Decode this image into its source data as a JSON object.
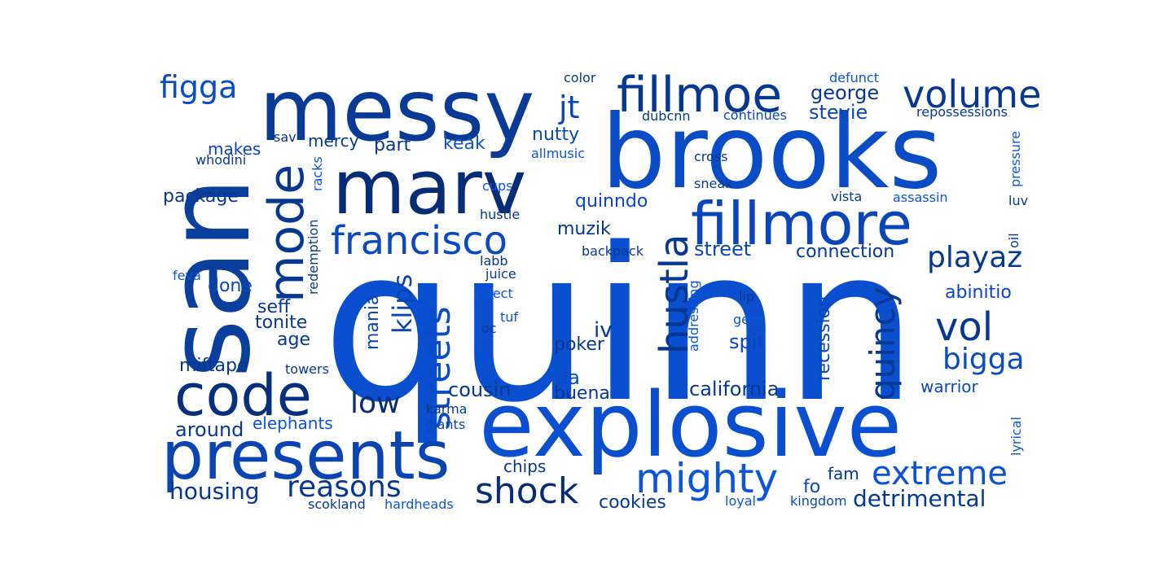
{
  "words": [
    {
      "text": "quinn",
      "color": "#0a4fd0"
    },
    {
      "text": "brooks",
      "color": "#0a4bc6"
    },
    {
      "text": "san",
      "color": "#0a3f9e"
    },
    {
      "text": "messy",
      "color": "#083a96"
    },
    {
      "text": "explosive",
      "color": "#0a4fd0"
    },
    {
      "text": "marv",
      "color": "#062c76"
    },
    {
      "text": "presents",
      "color": "#0a43b2"
    },
    {
      "text": "fillmore",
      "color": "#0a46ba"
    },
    {
      "text": "code",
      "color": "#06307e"
    },
    {
      "text": "mode",
      "color": "#073891"
    },
    {
      "text": "fillmoe",
      "color": "#073891"
    },
    {
      "text": "francisco",
      "color": "#0a49c0"
    },
    {
      "text": "mighty",
      "color": "#0b55dc"
    },
    {
      "text": "hustla",
      "color": "#073891"
    },
    {
      "text": "volume",
      "color": "#073891"
    },
    {
      "text": "streets",
      "color": "#0a4bc6"
    },
    {
      "text": "shock",
      "color": "#062c76"
    },
    {
      "text": "extreme",
      "color": "#0b52d6"
    },
    {
      "text": "vol",
      "color": "#073891"
    },
    {
      "text": "quincy",
      "color": "#073891"
    },
    {
      "text": "bigga",
      "color": "#0a4bc6"
    },
    {
      "text": "playaz",
      "color": "#073891"
    },
    {
      "text": "reasons",
      "color": "#073891"
    },
    {
      "text": "low",
      "color": "#062c76"
    },
    {
      "text": "klips",
      "color": "#0a43b2"
    },
    {
      "text": "figga",
      "color": "#0a4bc6"
    },
    {
      "text": "jt",
      "color": "#0a46ba"
    },
    {
      "text": "housing",
      "color": "#073891"
    },
    {
      "text": "detrimental",
      "color": "#073891"
    },
    {
      "text": "george",
      "color": "#073891"
    },
    {
      "text": "stevie",
      "color": "#0a46ba"
    },
    {
      "text": "nutty",
      "color": "#0a46ba"
    },
    {
      "text": "keak",
      "color": "#0b55dc"
    },
    {
      "text": "mercy",
      "color": "#073891"
    },
    {
      "text": "part",
      "color": "#073891"
    },
    {
      "text": "makes",
      "color": "#0a46ba"
    },
    {
      "text": "package",
      "color": "#073891"
    },
    {
      "text": "quinndo",
      "color": "#0a46ba"
    },
    {
      "text": "muzik",
      "color": "#073891"
    },
    {
      "text": "street",
      "color": "#0a46ba"
    },
    {
      "text": "connection",
      "color": "#073891"
    },
    {
      "text": "recession",
      "color": "#0a46ba"
    },
    {
      "text": "abinitio",
      "color": "#0a46ba"
    },
    {
      "text": "california",
      "color": "#073891"
    },
    {
      "text": "warrior",
      "color": "#0a46ba"
    },
    {
      "text": "cousin",
      "color": "#073891"
    },
    {
      "text": "buena",
      "color": "#073891"
    },
    {
      "text": "da",
      "color": "#0a4bc6"
    },
    {
      "text": "poker",
      "color": "#073891"
    },
    {
      "text": "iv",
      "color": "#073891"
    },
    {
      "text": "spit",
      "color": "#0a46ba"
    },
    {
      "text": "mania",
      "color": "#0a46ba"
    },
    {
      "text": "seff",
      "color": "#073891"
    },
    {
      "text": "tonite",
      "color": "#073891"
    },
    {
      "text": "age",
      "color": "#073891"
    },
    {
      "text": "done",
      "color": "#0a46ba"
    },
    {
      "text": "miftape",
      "color": "#073891"
    },
    {
      "text": "around",
      "color": "#073891"
    },
    {
      "text": "elephants",
      "color": "#0b55dc"
    },
    {
      "text": "chips",
      "color": "#073891"
    },
    {
      "text": "cookies",
      "color": "#073891"
    },
    {
      "text": "fo",
      "color": "#0a46ba"
    },
    {
      "text": "fam",
      "color": "#073891"
    },
    {
      "text": "scokland",
      "color": "#073891"
    },
    {
      "text": "hardheads",
      "color": "#0b55dc"
    },
    {
      "text": "loyal",
      "color": "#0b55dc"
    },
    {
      "text": "kingdom",
      "color": "#0a46ba"
    },
    {
      "text": "karma",
      "color": "#073891"
    },
    {
      "text": "giants",
      "color": "#0a46ba"
    },
    {
      "text": "lyrical",
      "color": "#0b55dc"
    },
    {
      "text": "towers",
      "color": "#073891"
    },
    {
      "text": "tuf",
      "color": "#0b55dc"
    },
    {
      "text": "oc",
      "color": "#073891"
    },
    {
      "text": "gets",
      "color": "#0b55dc"
    },
    {
      "text": "lip",
      "color": "#073891"
    },
    {
      "text": "addressing",
      "color": "#0b55dc"
    },
    {
      "text": "direct",
      "color": "#0b55dc"
    },
    {
      "text": "juice",
      "color": "#073891"
    },
    {
      "text": "labb",
      "color": "#073891"
    },
    {
      "text": "backpack",
      "color": "#073891"
    },
    {
      "text": "hustle",
      "color": "#073891"
    },
    {
      "text": "cups",
      "color": "#0b55dc"
    },
    {
      "text": "feva",
      "color": "#0b55dc"
    },
    {
      "text": "redemption",
      "color": "#073891"
    },
    {
      "text": "racks",
      "color": "#0b55dc"
    },
    {
      "text": "whodini",
      "color": "#073891"
    },
    {
      "text": "sav",
      "color": "#073891"
    },
    {
      "text": "allmusic",
      "color": "#0b55dc"
    },
    {
      "text": "dubcnn",
      "color": "#073891"
    },
    {
      "text": "color",
      "color": "#073891"
    },
    {
      "text": "continues",
      "color": "#0a46ba"
    },
    {
      "text": "defunct",
      "color": "#0b55dc"
    },
    {
      "text": "repossessions",
      "color": "#073891"
    },
    {
      "text": "pressure",
      "color": "#0b55dc"
    },
    {
      "text": "cross",
      "color": "#073891"
    },
    {
      "text": "sneak",
      "color": "#073891"
    },
    {
      "text": "vista",
      "color": "#073891"
    },
    {
      "text": "assassin",
      "color": "#0b55dc"
    },
    {
      "text": "luv",
      "color": "#073891"
    },
    {
      "text": "oil",
      "color": "#073891"
    }
  ]
}
